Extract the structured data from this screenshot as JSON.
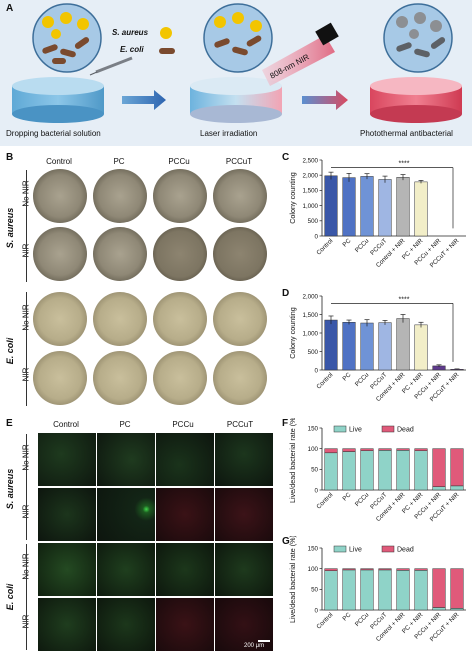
{
  "panel_letters": {
    "a": "A",
    "b": "B",
    "c": "C",
    "d": "D",
    "e": "E",
    "f": "F",
    "g": "G"
  },
  "schematic": {
    "legend_s_aureus": "S. aureus",
    "legend_e_coli": "E. coli",
    "nir_label": "808-nm NIR",
    "step1": "Dropping bacterial solution",
    "step2": "Laser irradiation",
    "step3": "Photothermal antibacterial"
  },
  "plates": {
    "columns": [
      "Control",
      "PC",
      "PCCu",
      "PCCuT"
    ],
    "species_top": "S. aureus",
    "species_bottom": "E. coli",
    "row_no_nir": "No NIR",
    "row_nir": "NIR"
  },
  "fluorescence": {
    "columns": [
      "Control",
      "PC",
      "PCCu",
      "PCCuT"
    ],
    "species_top": "S. aureus",
    "species_bottom": "E. coli",
    "row_no_nir": "No NIR",
    "row_nir": "NIR",
    "scale_bar": "200 μm"
  },
  "colors": {
    "bar_fills": [
      "#3a57a8",
      "#4f72c4",
      "#6f93d6",
      "#9fb6e3",
      "#b5b5b5",
      "#f2eec8",
      "#5e3a8c",
      "#7a4ea8"
    ],
    "live": "#8fd3c8",
    "dead": "#e05a7a",
    "dish_sa": "#8f8876",
    "dish_ec": "#b7ad8a",
    "schematic_bg": "#e6eef6"
  },
  "chart_data": [
    {
      "type": "bar",
      "id": "C",
      "categories": [
        "Control",
        "PC",
        "PCCu",
        "PCCuT",
        "Control + NIR",
        "PC + NIR",
        "PCCu + NIR",
        "PCCuT + NIR"
      ],
      "values": [
        1980,
        1920,
        1960,
        1860,
        1930,
        1780,
        0,
        0
      ],
      "errors": [
        120,
        140,
        90,
        110,
        90,
        50,
        0,
        0
      ],
      "ylabel": "Colony counting",
      "ylim": [
        0,
        2500
      ],
      "yticks": [
        0,
        500,
        1000,
        1500,
        2000,
        2500
      ],
      "ytick_labels": [
        "0",
        "500",
        "1,000",
        "1,500",
        "2,000",
        "2,500"
      ],
      "significance": "****"
    },
    {
      "type": "bar",
      "id": "D",
      "categories": [
        "Control",
        "PC",
        "PCCu",
        "PCCuT",
        "Control + NIR",
        "PC + NIR",
        "PCCu + NIR",
        "PCCuT + NIR"
      ],
      "values": [
        1350,
        1290,
        1270,
        1280,
        1390,
        1220,
        110,
        20
      ],
      "errors": [
        110,
        60,
        90,
        60,
        110,
        70,
        30,
        10
      ],
      "ylabel": "Colony counting",
      "ylim": [
        0,
        2000
      ],
      "yticks": [
        0,
        500,
        1000,
        1500,
        2000
      ],
      "ytick_labels": [
        "0",
        "500",
        "1,000",
        "1,500",
        "2,000"
      ],
      "significance": "****"
    },
    {
      "type": "bar",
      "stacked": true,
      "id": "F",
      "categories": [
        "Control",
        "PC",
        "PCCu",
        "PCCuT",
        "Control + NIR",
        "PC + NIR",
        "PCCu + NIR",
        "PCCuT + NIR"
      ],
      "series": [
        {
          "name": "Live",
          "values": [
            90,
            93,
            95,
            96,
            96,
            95,
            8,
            10
          ]
        },
        {
          "name": "Dead",
          "values": [
            10,
            7,
            5,
            4,
            4,
            5,
            92,
            90
          ]
        }
      ],
      "ylabel": "Live/dead bacterial rate (%)",
      "ylim": [
        0,
        150
      ],
      "yticks": [
        0,
        50,
        100,
        150
      ],
      "legend_position": "top"
    },
    {
      "type": "bar",
      "stacked": true,
      "id": "G",
      "categories": [
        "Control",
        "PC",
        "PCCu",
        "PCCuT",
        "Control + NIR",
        "PC + NIR",
        "PCCu + NIR",
        "PCCuT + NIR"
      ],
      "series": [
        {
          "name": "Live",
          "values": [
            95,
            97,
            97,
            97,
            96,
            96,
            6,
            4
          ]
        },
        {
          "name": "Dead",
          "values": [
            5,
            3,
            3,
            3,
            4,
            4,
            94,
            96
          ]
        }
      ],
      "ylabel": "Live/dead bacterial rate (%)",
      "ylim": [
        0,
        150
      ],
      "yticks": [
        0,
        50,
        100,
        150
      ],
      "legend_position": "top"
    }
  ]
}
